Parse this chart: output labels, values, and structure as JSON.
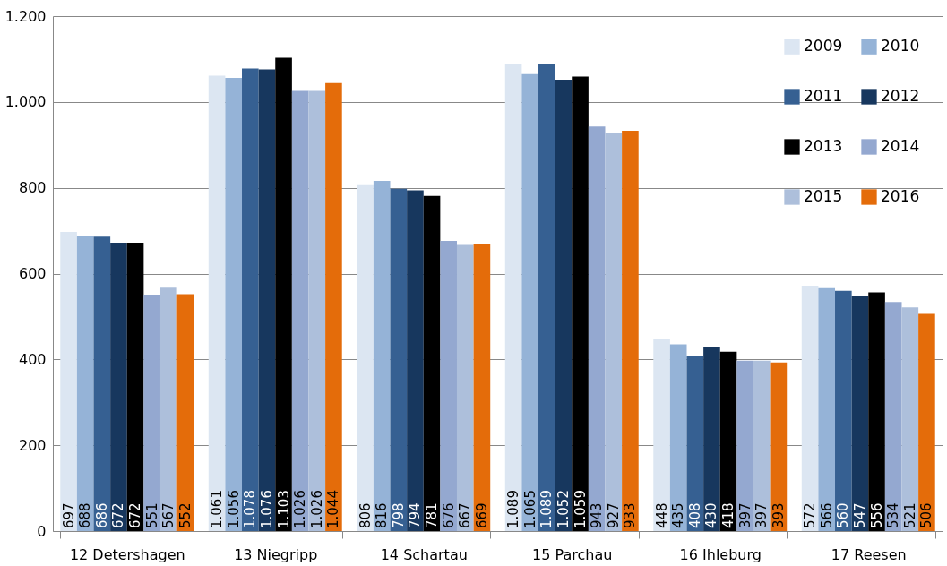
{
  "chart_data": {
    "type": "bar",
    "categories": [
      "12 Detershagen",
      "13 Niegripp",
      "14 Schartau",
      "15 Parchau",
      "16 Ihleburg",
      "17 Reesen"
    ],
    "series": [
      {
        "name": "2009",
        "color": "#dce6f2",
        "values": [
          697,
          1061,
          806,
          1089,
          448,
          572
        ],
        "value_labels": [
          "697",
          "1.061",
          "806",
          "1.089",
          "448",
          "572"
        ]
      },
      {
        "name": "2010",
        "color": "#95b3d7",
        "values": [
          688,
          1056,
          816,
          1065,
          435,
          566
        ],
        "value_labels": [
          "688",
          "1.056",
          "816",
          "1.065",
          "435",
          "566"
        ]
      },
      {
        "name": "2011",
        "color": "#366092",
        "values": [
          686,
          1078,
          798,
          1089,
          408,
          560
        ],
        "value_labels": [
          "686",
          "1.078",
          "798",
          "1.089",
          "408",
          "560"
        ]
      },
      {
        "name": "2012",
        "color": "#17375e",
        "values": [
          672,
          1076,
          794,
          1052,
          430,
          547
        ],
        "value_labels": [
          "672",
          "1.076",
          "794",
          "1.052",
          "430",
          "547"
        ]
      },
      {
        "name": "2013",
        "color": "#000000",
        "values": [
          672,
          1103,
          781,
          1059,
          418,
          556
        ],
        "value_labels": [
          "672",
          "1.103",
          "781",
          "1.059",
          "418",
          "556"
        ]
      },
      {
        "name": "2014",
        "color": "#94a8d0",
        "values": [
          551,
          1026,
          676,
          943,
          397,
          534
        ],
        "value_labels": [
          "551",
          "1.026",
          "676",
          "943",
          "397",
          "534"
        ]
      },
      {
        "name": "2015",
        "color": "#adbfdb",
        "values": [
          567,
          1026,
          667,
          927,
          397,
          521
        ],
        "value_labels": [
          "567",
          "1.026",
          "667",
          "927",
          "397",
          "521"
        ]
      },
      {
        "name": "2016",
        "color": "#e46c0a",
        "values": [
          552,
          1044,
          669,
          933,
          393,
          506
        ],
        "value_labels": [
          "552",
          "1.044",
          "669",
          "933",
          "393",
          "506"
        ]
      }
    ],
    "ylim": [
      0,
      1200
    ],
    "yticks": [
      0,
      200,
      400,
      600,
      800,
      {
        "value": 1000,
        "label": "1.000"
      },
      {
        "value": 1200,
        "label": "1.200"
      }
    ],
    "grid": "y",
    "legend": "top right"
  }
}
